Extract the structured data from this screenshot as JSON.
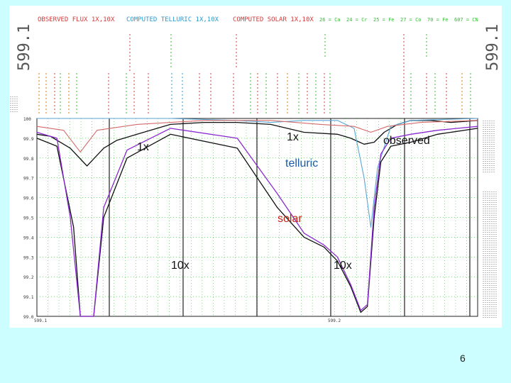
{
  "header": {
    "observed": "OBSERVED FLUX 1X,10X",
    "telluric": "COMPUTED TELLURIC 1X,10X",
    "solar": "COMPUTED SOLAR 1X,10X",
    "elements": [
      "26 = Ca",
      "24 = Cr",
      "25 = Fe",
      "27 = Co",
      "70 = Fe",
      "607 = CN"
    ],
    "wavelength_left": "599.1",
    "wavelength_right": "599.1"
  },
  "annotations": {
    "label_1x_left": "1x",
    "label_1x_top": "1x",
    "label_observed": "observed",
    "label_telluric": "telluric",
    "label_solar": "solar",
    "label_10x_left": "10x",
    "label_10x_right": "10x"
  },
  "page_number": "6",
  "colors": {
    "background": "#ccfdff",
    "observed": "#111111",
    "telluric": "#5aa6d6",
    "solar": "#d46a6a",
    "solar_10x": "#8a2ad0",
    "grid": "#22aa22"
  },
  "chart_data": {
    "type": "line",
    "xlabel": "",
    "ylabel": "",
    "x_tick_labels": [
      "599.1",
      "599.2"
    ],
    "y_tick_labels": [
      "100",
      "99.9",
      "99.8",
      "99.7",
      "99.6",
      "99.5",
      "99.4",
      "99.3",
      "99.2",
      "99.1",
      "99.0"
    ],
    "ylim": [
      99.0,
      100.0
    ],
    "grid": true,
    "x_range_nm": [
      599.1,
      599.232
    ],
    "series": [
      {
        "name": "observed",
        "scale": "1x",
        "x": [
          599.1,
          599.104,
          599.11,
          599.115,
          599.12,
          599.124,
          599.13,
          599.14,
          599.15,
          599.16,
          599.17,
          599.18,
          599.19,
          599.194,
          599.198,
          599.201,
          599.204,
          599.208,
          599.212,
          599.218,
          599.224,
          599.232
        ],
        "y": [
          99.92,
          99.91,
          99.85,
          99.76,
          99.85,
          99.89,
          99.92,
          99.97,
          99.98,
          99.98,
          99.97,
          99.93,
          99.92,
          99.9,
          99.87,
          99.88,
          99.93,
          99.97,
          99.99,
          99.99,
          99.98,
          99.99
        ]
      },
      {
        "name": "observed",
        "scale": "10x",
        "x": [
          599.1,
          599.106,
          599.111,
          599.113,
          599.117,
          599.12,
          599.127,
          599.14,
          599.16,
          599.172,
          599.18,
          599.186,
          599.19,
          599.194,
          599.197,
          599.199,
          599.201,
          599.203,
          599.206,
          599.212,
          599.22,
          599.232
        ],
        "y": [
          99.9,
          99.86,
          99.45,
          99.0,
          99.0,
          99.5,
          99.8,
          99.92,
          99.85,
          99.55,
          99.4,
          99.35,
          99.28,
          99.15,
          99.02,
          99.05,
          99.5,
          99.78,
          99.86,
          99.88,
          99.92,
          99.95
        ]
      },
      {
        "name": "telluric",
        "scale": "1x",
        "x": [
          599.1,
          599.14,
          599.16,
          599.17,
          599.18,
          599.19,
          599.195,
          599.198,
          599.2,
          599.202,
          599.206,
          599.212,
          599.232
        ],
        "y": [
          100.0,
          100.0,
          99.99,
          99.98,
          99.99,
          99.99,
          99.95,
          99.7,
          99.45,
          99.75,
          99.96,
          99.99,
          100.0
        ]
      },
      {
        "name": "solar",
        "scale": "1x",
        "x": [
          599.1,
          599.108,
          599.113,
          599.118,
          599.13,
          599.15,
          599.17,
          599.185,
          599.195,
          599.2,
          599.205,
          599.215,
          599.232
        ],
        "y": [
          99.96,
          99.94,
          99.83,
          99.94,
          99.97,
          99.99,
          99.99,
          99.97,
          99.96,
          99.93,
          99.96,
          99.98,
          99.99
        ]
      },
      {
        "name": "solar",
        "scale": "10x",
        "x": [
          599.1,
          599.106,
          599.11,
          599.113,
          599.117,
          599.12,
          599.127,
          599.14,
          599.16,
          599.172,
          599.18,
          599.186,
          599.19,
          599.194,
          599.197,
          599.199,
          599.201,
          599.203,
          599.206,
          599.212,
          599.22,
          599.232
        ],
        "y": [
          99.93,
          99.9,
          99.5,
          99.0,
          99.0,
          99.55,
          99.84,
          99.95,
          99.9,
          99.62,
          99.42,
          99.36,
          99.3,
          99.16,
          99.03,
          99.06,
          99.55,
          99.82,
          99.9,
          99.92,
          99.94,
          99.96
        ]
      }
    ]
  }
}
